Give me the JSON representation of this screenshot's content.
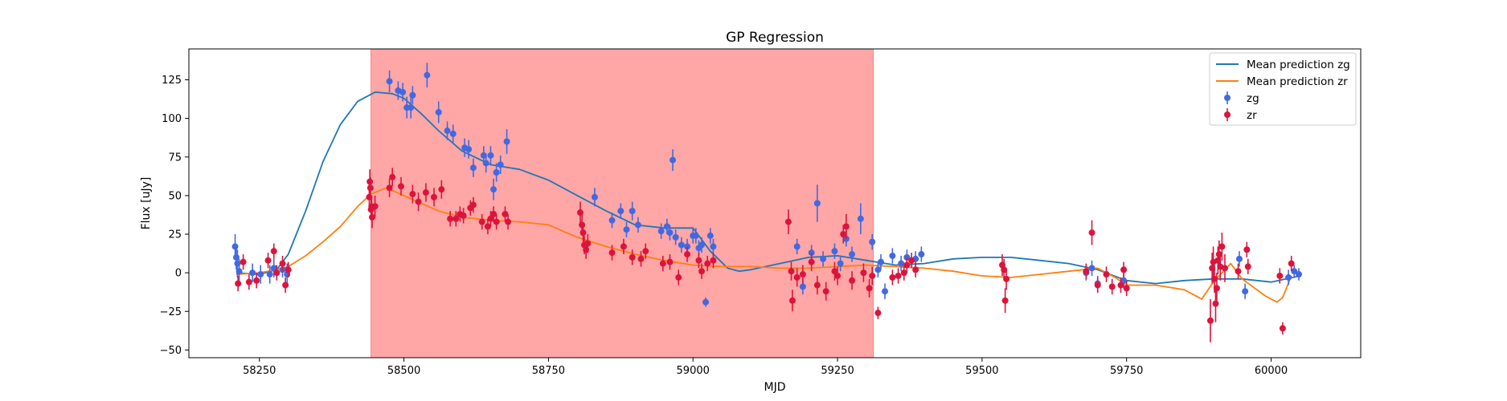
{
  "chart_data": {
    "type": "scatter",
    "title": "GP Regression",
    "xlabel": "MJD",
    "ylabel": "Flux [uJy]",
    "xlim": [
      58128,
      60155
    ],
    "ylim": [
      -55,
      145
    ],
    "xticks": [
      58250,
      58500,
      58750,
      59000,
      59250,
      59500,
      59750,
      60000
    ],
    "yticks": [
      -50,
      -25,
      0,
      25,
      50,
      75,
      100,
      125
    ],
    "grid": false,
    "legend_position": "top-right",
    "shaded_region": {
      "x": [
        58443,
        59312
      ],
      "color": "#ffa6a6"
    },
    "colors": {
      "zg_points": "#4169e1",
      "zr_points": "#dc143c",
      "zg_line": "#1f77b4",
      "zr_line": "#ff7f0e"
    },
    "legend": [
      {
        "label": "Mean prediction zg",
        "kind": "line",
        "color": "#1f77b4"
      },
      {
        "label": "Mean prediction zr",
        "kind": "line",
        "color": "#ff7f0e"
      },
      {
        "label": "zg",
        "kind": "errorbar",
        "color": "#4169e1"
      },
      {
        "label": "zr",
        "kind": "errorbar",
        "color": "#dc143c"
      }
    ],
    "series": [
      {
        "name": "Mean prediction zg",
        "type": "line",
        "x": [
          58210,
          58250,
          58280,
          58300,
          58330,
          58360,
          58390,
          58420,
          58450,
          58480,
          58500,
          58530,
          58560,
          58600,
          58650,
          58700,
          58750,
          58800,
          58850,
          58900,
          58950,
          59000,
          59030,
          59060,
          59080,
          59100,
          59150,
          59200,
          59250,
          59300,
          59350,
          59400,
          59450,
          59500,
          59550,
          59600,
          59650,
          59700,
          59750,
          59800,
          59850,
          59900,
          59950,
          60000,
          60050
        ],
        "y": [
          0,
          -1,
          2,
          12,
          40,
          72,
          96,
          111,
          117,
          116,
          113,
          103,
          92,
          79,
          70,
          67,
          60,
          50,
          40,
          31,
          29,
          29,
          14,
          3,
          1,
          2,
          6,
          10,
          11,
          8,
          5,
          6,
          9,
          10,
          10,
          8,
          6,
          2,
          -5,
          -7,
          -5,
          -4,
          -4,
          -6,
          -2
        ]
      },
      {
        "name": "Mean prediction zr",
        "type": "line",
        "x": [
          58210,
          58250,
          58280,
          58300,
          58330,
          58360,
          58390,
          58420,
          58443,
          58470,
          58500,
          58530,
          58560,
          58600,
          58650,
          58700,
          58750,
          58800,
          58850,
          58900,
          58950,
          59000,
          59050,
          59100,
          59150,
          59200,
          59250,
          59300,
          59350,
          59400,
          59450,
          59500,
          59550,
          59600,
          59650,
          59700,
          59730,
          59750,
          59800,
          59850,
          59880,
          59900,
          59930,
          59950,
          59990,
          60010,
          60020,
          60035
        ],
        "y": [
          -1,
          0,
          2,
          4,
          11,
          20,
          30,
          43,
          51,
          55,
          50,
          45,
          40,
          36,
          34,
          33,
          31,
          23,
          17,
          12,
          8,
          5,
          4,
          4,
          3,
          3,
          4,
          5,
          4,
          3,
          1,
          -2,
          -3,
          -1,
          1,
          3,
          -3,
          -8,
          -8,
          -11,
          -17,
          -6,
          6,
          -4,
          -15,
          -19,
          -16,
          -2
        ]
      },
      {
        "name": "zg",
        "type": "errorbar",
        "points": [
          [
            58208,
            17,
            8
          ],
          [
            58210,
            10,
            8
          ],
          [
            58212,
            6,
            9
          ],
          [
            58215,
            1,
            8
          ],
          [
            58238,
            0,
            6
          ],
          [
            58252,
            -1,
            6
          ],
          [
            58268,
            -1,
            6
          ],
          [
            58275,
            3,
            6
          ],
          [
            58290,
            2,
            5
          ],
          [
            58298,
            -1,
            7
          ],
          [
            58475,
            124,
            7
          ],
          [
            58490,
            118,
            6
          ],
          [
            58498,
            117,
            6
          ],
          [
            58505,
            107,
            7
          ],
          [
            58512,
            107,
            7
          ],
          [
            58515,
            115,
            6
          ],
          [
            58540,
            128,
            8
          ],
          [
            58560,
            104,
            7
          ],
          [
            58575,
            92,
            6
          ],
          [
            58585,
            90,
            6
          ],
          [
            58605,
            81,
            6
          ],
          [
            58612,
            80,
            6
          ],
          [
            58620,
            68,
            6
          ],
          [
            58638,
            76,
            6
          ],
          [
            58642,
            71,
            6
          ],
          [
            58650,
            76,
            6
          ],
          [
            58655,
            54,
            7
          ],
          [
            58660,
            65,
            6
          ],
          [
            58667,
            70,
            6
          ],
          [
            58678,
            85,
            8
          ],
          [
            58830,
            49,
            6
          ],
          [
            58860,
            34,
            5
          ],
          [
            58875,
            40,
            5
          ],
          [
            58885,
            28,
            5
          ],
          [
            58895,
            40,
            6
          ],
          [
            58905,
            31,
            5
          ],
          [
            58945,
            27,
            5
          ],
          [
            58955,
            30,
            5
          ],
          [
            58960,
            26,
            5
          ],
          [
            58965,
            73,
            7
          ],
          [
            58970,
            23,
            5
          ],
          [
            58980,
            18,
            5
          ],
          [
            58990,
            17,
            5
          ],
          [
            59000,
            24,
            5
          ],
          [
            59005,
            24,
            5
          ],
          [
            59010,
            16,
            5
          ],
          [
            59015,
            18,
            5
          ],
          [
            59022,
            -19,
            3
          ],
          [
            59030,
            24,
            5
          ],
          [
            59035,
            17,
            5
          ],
          [
            59180,
            17,
            5
          ],
          [
            59190,
            -9,
            5
          ],
          [
            59205,
            13,
            5
          ],
          [
            59215,
            45,
            12
          ],
          [
            59225,
            9,
            5
          ],
          [
            59245,
            14,
            5
          ],
          [
            59255,
            6,
            5
          ],
          [
            59265,
            22,
            5
          ],
          [
            59275,
            12,
            5
          ],
          [
            59290,
            35,
            10
          ],
          [
            59310,
            20,
            5
          ],
          [
            59320,
            2,
            5
          ],
          [
            59325,
            7,
            5
          ],
          [
            59332,
            -12,
            5
          ],
          [
            59345,
            11,
            5
          ],
          [
            59360,
            6,
            5
          ],
          [
            59370,
            10,
            5
          ],
          [
            59385,
            9,
            5
          ],
          [
            59395,
            12,
            5
          ],
          [
            59680,
            0,
            5
          ],
          [
            59690,
            3,
            5
          ],
          [
            59700,
            -7,
            5
          ],
          [
            59745,
            -5,
            5
          ],
          [
            59945,
            9,
            5
          ],
          [
            59955,
            -12,
            5
          ],
          [
            60030,
            -3,
            5
          ],
          [
            60040,
            1,
            4
          ],
          [
            60048,
            -1,
            4
          ]
        ]
      },
      {
        "name": "zr",
        "type": "errorbar",
        "points": [
          [
            58213,
            -7,
            5
          ],
          [
            58222,
            7,
            5
          ],
          [
            58232,
            -6,
            5
          ],
          [
            58245,
            -5,
            5
          ],
          [
            58265,
            8,
            5
          ],
          [
            58275,
            14,
            5
          ],
          [
            58280,
            0,
            5
          ],
          [
            58290,
            6,
            5
          ],
          [
            58295,
            -8,
            5
          ],
          [
            58300,
            2,
            5
          ],
          [
            58440,
            49,
            8
          ],
          [
            58441,
            59,
            8
          ],
          [
            58442,
            55,
            7
          ],
          [
            58443,
            41,
            7
          ],
          [
            58444,
            43,
            7
          ],
          [
            58445,
            36,
            7
          ],
          [
            58450,
            43,
            7
          ],
          [
            58475,
            55,
            6
          ],
          [
            58480,
            62,
            6
          ],
          [
            58495,
            56,
            6
          ],
          [
            58515,
            51,
            6
          ],
          [
            58525,
            46,
            6
          ],
          [
            58538,
            52,
            6
          ],
          [
            58552,
            49,
            6
          ],
          [
            58565,
            54,
            6
          ],
          [
            58580,
            35,
            5
          ],
          [
            58590,
            35,
            5
          ],
          [
            58597,
            38,
            5
          ],
          [
            58603,
            37,
            5
          ],
          [
            58615,
            42,
            5
          ],
          [
            58620,
            44,
            5
          ],
          [
            58635,
            33,
            5
          ],
          [
            58645,
            30,
            5
          ],
          [
            58650,
            35,
            5
          ],
          [
            58655,
            38,
            5
          ],
          [
            58660,
            33,
            5
          ],
          [
            58675,
            38,
            5
          ],
          [
            58680,
            33,
            5
          ],
          [
            58805,
            39,
            7
          ],
          [
            58808,
            31,
            7
          ],
          [
            58810,
            26,
            6
          ],
          [
            58812,
            18,
            6
          ],
          [
            58815,
            15,
            6
          ],
          [
            58818,
            19,
            6
          ],
          [
            58860,
            13,
            5
          ],
          [
            58880,
            17,
            5
          ],
          [
            58895,
            10,
            5
          ],
          [
            58910,
            9,
            5
          ],
          [
            58918,
            14,
            5
          ],
          [
            58948,
            6,
            5
          ],
          [
            58960,
            7,
            5
          ],
          [
            58975,
            -3,
            5
          ],
          [
            58990,
            12,
            5
          ],
          [
            59010,
            8,
            5
          ],
          [
            59015,
            1,
            5
          ],
          [
            59025,
            6,
            5
          ],
          [
            59035,
            8,
            5
          ],
          [
            59165,
            33,
            8
          ],
          [
            59170,
            1,
            6
          ],
          [
            59172,
            -18,
            7
          ],
          [
            59180,
            -3,
            6
          ],
          [
            59190,
            -1,
            6
          ],
          [
            59205,
            7,
            6
          ],
          [
            59215,
            -8,
            6
          ],
          [
            59230,
            -12,
            6
          ],
          [
            59245,
            1,
            6
          ],
          [
            59250,
            -2,
            6
          ],
          [
            59260,
            25,
            6
          ],
          [
            59265,
            30,
            8
          ],
          [
            59275,
            -5,
            6
          ],
          [
            59295,
            0,
            6
          ],
          [
            59305,
            -10,
            6
          ],
          [
            59310,
            -2,
            6
          ],
          [
            59320,
            -26,
            4
          ],
          [
            59345,
            -3,
            5
          ],
          [
            59355,
            -2,
            5
          ],
          [
            59365,
            0,
            5
          ],
          [
            59370,
            5,
            5
          ],
          [
            59378,
            8,
            5
          ],
          [
            59385,
            2,
            5
          ],
          [
            59535,
            5,
            7
          ],
          [
            59538,
            2,
            7
          ],
          [
            59540,
            -18,
            8
          ],
          [
            59542,
            -4,
            7
          ],
          [
            59680,
            1,
            5
          ],
          [
            59690,
            26,
            8
          ],
          [
            59700,
            -8,
            5
          ],
          [
            59715,
            -1,
            5
          ],
          [
            59725,
            -9,
            5
          ],
          [
            59740,
            -8,
            5
          ],
          [
            59745,
            2,
            5
          ],
          [
            59750,
            -10,
            5
          ],
          [
            59895,
            -31,
            14
          ],
          [
            59898,
            3,
            10
          ],
          [
            59900,
            7,
            10
          ],
          [
            59902,
            -4,
            9
          ],
          [
            59904,
            -20,
            12
          ],
          [
            59906,
            -10,
            10
          ],
          [
            59908,
            8,
            9
          ],
          [
            59910,
            12,
            9
          ],
          [
            59912,
            4,
            9
          ],
          [
            59915,
            17,
            9
          ],
          [
            59920,
            3,
            9
          ],
          [
            59943,
            1,
            5
          ],
          [
            59958,
            15,
            5
          ],
          [
            59960,
            4,
            5
          ],
          [
            60015,
            -2,
            5
          ],
          [
            60020,
            -36,
            4
          ],
          [
            60035,
            6,
            5
          ]
        ]
      }
    ]
  }
}
